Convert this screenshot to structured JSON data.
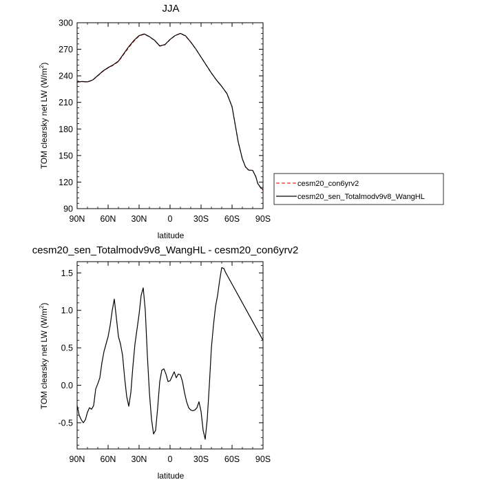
{
  "chart_data": [
    {
      "type": "line",
      "title": "JJA",
      "xlabel": "latitude",
      "ylabel": "TOM clearsky net LW (W/m",
      "ylabel_sup": "2",
      "ylabel_tail": ")",
      "xlim": [
        90,
        -90
      ],
      "ylim": [
        90,
        300
      ],
      "x_ticks": [
        90,
        60,
        30,
        0,
        -30,
        -60,
        -90
      ],
      "x_tick_labels": [
        "90N",
        "60N",
        "30N",
        "0",
        "30S",
        "60S",
        "90S"
      ],
      "y_ticks": [
        90,
        120,
        150,
        180,
        210,
        240,
        270,
        300
      ],
      "y_tick_labels": [
        "90",
        "120",
        "150",
        "180",
        "210",
        "240",
        "270",
        "300"
      ],
      "grid": false,
      "legend_position": "outside-right",
      "x": [
        90,
        85,
        80,
        75,
        70,
        65,
        60,
        55,
        50,
        45,
        40,
        35,
        30,
        25,
        20,
        15,
        10,
        5,
        0,
        -5,
        -10,
        -15,
        -20,
        -25,
        -30,
        -35,
        -40,
        -45,
        -50,
        -55,
        -60,
        -63,
        -66,
        -70,
        -73,
        -76,
        -80,
        -83,
        -85,
        -88,
        -90
      ],
      "series": [
        {
          "name": "cesm20_con6yrv2",
          "color": "#e03030",
          "dash": "dashed",
          "values": [
            233,
            233.5,
            233,
            235,
            240,
            245,
            249,
            252,
            256,
            264,
            272,
            279,
            285,
            287,
            284,
            280,
            273.5,
            275,
            281,
            285.5,
            287.8,
            285,
            278,
            270,
            261,
            252,
            243,
            235,
            228,
            220,
            205,
            185,
            165,
            146,
            137,
            133.5,
            133,
            126,
            118,
            113,
            110
          ]
        },
        {
          "name": "cesm20_sen_Totalmodv9v8_WangHL",
          "color": "#000000",
          "dash": "solid",
          "values": [
            233,
            233.6,
            233.2,
            235.3,
            240.3,
            245.5,
            249.3,
            252.5,
            256.6,
            264.8,
            273,
            280,
            285.5,
            287.3,
            284.3,
            280.2,
            273.8,
            275.3,
            281.2,
            285.6,
            288,
            285.2,
            278.2,
            270.2,
            261.2,
            252.2,
            243.2,
            235.1,
            228.1,
            220.1,
            205.2,
            185.3,
            165.2,
            146.2,
            137.2,
            133.6,
            133.2,
            126.1,
            118.1,
            113.3,
            111.5
          ]
        }
      ]
    },
    {
      "type": "line",
      "title": "cesm20_sen_Totalmodv9v8_WangHL - cesm20_con6yrv2",
      "xlabel": "latitude",
      "ylabel": "TOM clearsky net LW (W/m",
      "ylabel_sup": "2",
      "ylabel_tail": ")",
      "xlim": [
        90,
        -90
      ],
      "ylim": [
        -0.85,
        1.65
      ],
      "x_ticks": [
        90,
        60,
        30,
        0,
        -30,
        -60,
        -90
      ],
      "x_tick_labels": [
        "90N",
        "60N",
        "30N",
        "0",
        "30S",
        "60S",
        "90S"
      ],
      "y_ticks": [
        -0.5,
        0,
        0.5,
        1,
        1.5
      ],
      "y_tick_labels": [
        "-0.5",
        "0.0",
        "0.5",
        "1.0",
        "1.5"
      ],
      "grid": false,
      "x": [
        90,
        88,
        86,
        84,
        82,
        80,
        78,
        76,
        74,
        72,
        70,
        68,
        66,
        64,
        62,
        60,
        58,
        56,
        54,
        52,
        50,
        48,
        46,
        44,
        42,
        40,
        38,
        36,
        34,
        32,
        30,
        28,
        26,
        24,
        22,
        20,
        18,
        16,
        14,
        12,
        10,
        8,
        6,
        4,
        2,
        0,
        -2,
        -4,
        -6,
        -8,
        -10,
        -12,
        -14,
        -16,
        -18,
        -20,
        -22,
        -24,
        -26,
        -28,
        -30,
        -32,
        -34,
        -36,
        -38,
        -40,
        -42,
        -44,
        -46,
        -48,
        -50,
        -52,
        -54,
        -56,
        -58,
        -60,
        -62,
        -64,
        -66,
        -68,
        -70,
        -72,
        -74,
        -76,
        -78,
        -80,
        -82,
        -84,
        -86,
        -88,
        -90
      ],
      "series": [
        {
          "name": "",
          "color": "#000000",
          "values": [
            -0.27,
            -0.4,
            -0.46,
            -0.5,
            -0.46,
            -0.36,
            -0.3,
            -0.32,
            -0.27,
            -0.05,
            0.02,
            0.1,
            0.3,
            0.45,
            0.55,
            0.65,
            0.8,
            1.0,
            1.15,
            0.9,
            0.65,
            0.55,
            0.4,
            0.1,
            -0.15,
            -0.28,
            -0.1,
            0.25,
            0.55,
            0.75,
            0.95,
            1.2,
            1.3,
            1.0,
            0.4,
            -0.1,
            -0.45,
            -0.65,
            -0.6,
            -0.3,
            0.05,
            0.2,
            0.22,
            0.15,
            0.05,
            0.06,
            0.12,
            0.18,
            0.1,
            0.15,
            0.14,
            0.05,
            -0.1,
            -0.22,
            -0.3,
            -0.33,
            -0.34,
            -0.33,
            -0.3,
            -0.22,
            -0.35,
            -0.6,
            -0.72,
            -0.45,
            0.0,
            0.5,
            0.8,
            1.05,
            1.2,
            1.4,
            1.57,
            1.56,
            1.5,
            1.45,
            1.4,
            1.35,
            1.3,
            1.25,
            1.2,
            1.15,
            1.1,
            1.05,
            1.0,
            0.95,
            0.9,
            0.85,
            0.8,
            0.75,
            0.7,
            0.65,
            0.6
          ]
        }
      ]
    }
  ]
}
